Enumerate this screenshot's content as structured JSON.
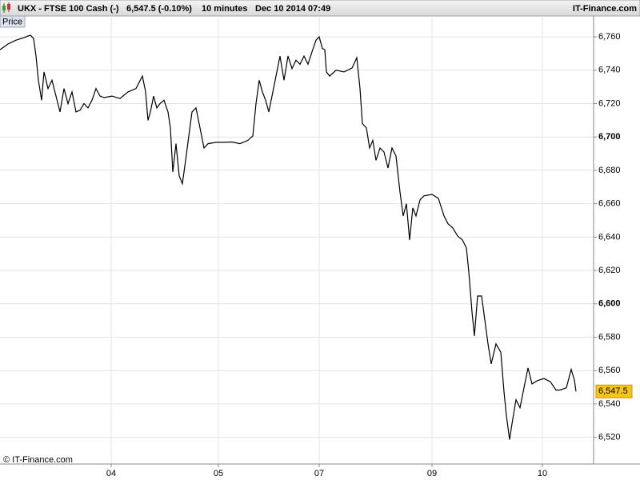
{
  "header": {
    "symbol": "UKX - FTSE 100 Cash (-)",
    "quote": "6,547.5 (-0.10%)",
    "interval": "10 minutes",
    "datetime": "Dec 10 2014 07:49",
    "site": "IT-Finance.com"
  },
  "footer": "© IT-Finance.com",
  "chart_data": {
    "type": "line",
    "panel_label": "Price",
    "series": [
      {
        "color": "#000000",
        "x": [
          0,
          10,
          20,
          30,
          38,
          42,
          45,
          48,
          52,
          55,
          60,
          65,
          70,
          75,
          80,
          85,
          90,
          95,
          100,
          105,
          110,
          115,
          120,
          125,
          130,
          140,
          150,
          160,
          170,
          178,
          182,
          185,
          188,
          192,
          196,
          200,
          205,
          210,
          213,
          216,
          220,
          224,
          228,
          232,
          236,
          240,
          245,
          250,
          255,
          260,
          270,
          280,
          290,
          300,
          310,
          316,
          320,
          324,
          328,
          332,
          336,
          340,
          345,
          350,
          355,
          360,
          365,
          370,
          375,
          380,
          385,
          390,
          395,
          399,
          403,
          406,
          408,
          412,
          420,
          430,
          440,
          446,
          450,
          453,
          458,
          462,
          466,
          470,
          475,
          480,
          485,
          490,
          495,
          500,
          504,
          508,
          512,
          516,
          520,
          525,
          530,
          540,
          548,
          555,
          560,
          566,
          572,
          578,
          583,
          586,
          590,
          593,
          597,
          602,
          606,
          610,
          614,
          620,
          626,
          630,
          633,
          637,
          640,
          645,
          650,
          655,
          660,
          665,
          672,
          680,
          688,
          695,
          700,
          708,
          714,
          718,
          720
        ],
        "values": [
          6752.3,
          6755.7,
          6758,
          6759.5,
          6761,
          6759,
          6748.5,
          6734,
          6722,
          6739,
          6729,
          6734,
          6724.5,
          6715,
          6729,
          6720,
          6727,
          6715,
          6716,
          6720,
          6717.4,
          6722,
          6729,
          6724.5,
          6723.6,
          6724.5,
          6723,
          6727,
          6729,
          6736.5,
          6727,
          6710,
          6715,
          6724.5,
          6717.4,
          6720,
          6722,
          6715,
          6705.4,
          6679,
          6696,
          6676.7,
          6672,
          6686,
          6700.6,
          6715,
          6717.4,
          6705.4,
          6693.4,
          6696,
          6696.8,
          6696.8,
          6697,
          6696,
          6698,
          6700.6,
          6720,
          6734,
          6727,
          6722,
          6715,
          6724.5,
          6736.5,
          6748.5,
          6734,
          6748.5,
          6741,
          6746,
          6743.6,
          6748.5,
          6743.6,
          6751,
          6758,
          6760,
          6753,
          6752.3,
          6739,
          6736.5,
          6740,
          6739,
          6741.3,
          6747.5,
          6729,
          6708,
          6705.4,
          6693.4,
          6698,
          6686,
          6693.4,
          6691,
          6681.4,
          6693.4,
          6688.6,
          6667,
          6652.7,
          6660,
          6638.3,
          6657.5,
          6652.7,
          6662.3,
          6664.7,
          6665.6,
          6663.2,
          6652.7,
          6648,
          6645.5,
          6640.7,
          6638.3,
          6633.5,
          6619.2,
          6595.2,
          6580.8,
          6604.7,
          6604.7,
          6590.4,
          6576,
          6564,
          6576,
          6571,
          6547.3,
          6533,
          6518.6,
          6528.1,
          6542.5,
          6537.7,
          6549.7,
          6561.6,
          6552,
          6554,
          6555.2,
          6553.3,
          6548.3,
          6548.3,
          6549.7,
          6560.7,
          6554.3,
          6547.5
        ]
      }
    ],
    "last_price": {
      "value": 6547.5,
      "label": "6,547.5"
    },
    "xlim": [
      0,
      742
    ],
    "xticks": [
      {
        "value": 139,
        "label": "04"
      },
      {
        "value": 273,
        "label": "05"
      },
      {
        "value": 399,
        "label": "07"
      },
      {
        "value": 540,
        "label": "09"
      },
      {
        "value": 678,
        "label": "10"
      }
    ],
    "ylim": [
      6504,
      6772.5
    ],
    "yticks": [
      {
        "value": 6520,
        "label": "6,520"
      },
      {
        "value": 6540,
        "label": "6,540"
      },
      {
        "value": 6560,
        "label": "6,560"
      },
      {
        "value": 6580,
        "label": "6,580"
      },
      {
        "value": 6600,
        "label": "6,600"
      },
      {
        "value": 6620,
        "label": "6,620"
      },
      {
        "value": 6640,
        "label": "6,640"
      },
      {
        "value": 6660,
        "label": "6,660"
      },
      {
        "value": 6680,
        "label": "6,680"
      },
      {
        "value": 6700,
        "label": "6,700"
      },
      {
        "value": 6720,
        "label": "6,720"
      },
      {
        "value": 6740,
        "label": "6,740"
      },
      {
        "value": 6760,
        "label": "6,760"
      }
    ],
    "grid": true
  }
}
